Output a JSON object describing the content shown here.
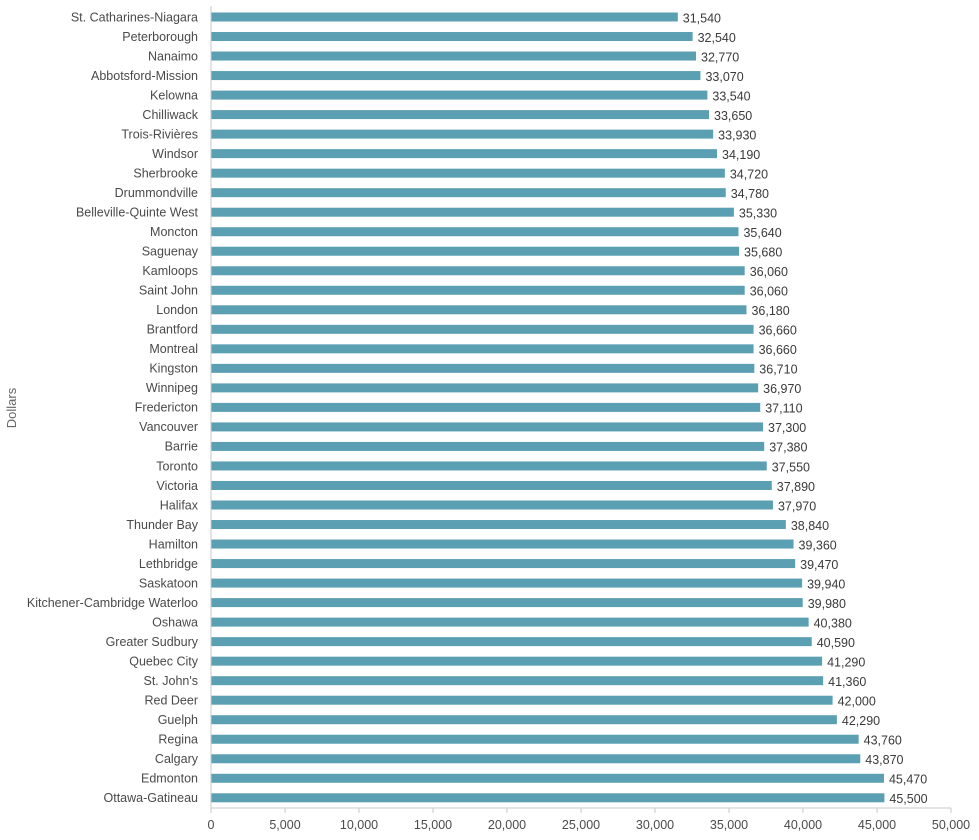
{
  "chart_data": {
    "type": "bar",
    "orientation": "horizontal",
    "title": "",
    "xlabel": "",
    "ylabel": "Dollars",
    "xlim": [
      0,
      50000
    ],
    "x_ticks": [
      0,
      5000,
      10000,
      15000,
      20000,
      25000,
      30000,
      35000,
      40000,
      45000,
      50000
    ],
    "x_tick_labels": [
      "0",
      "5,000",
      "10,000",
      "15,000",
      "20,000",
      "25,000",
      "30,000",
      "35,000",
      "40,000",
      "45,000",
      "50,000"
    ],
    "grid": false,
    "bar_color": "#5b9fb3",
    "categories": [
      "St. Catharines-Niagara",
      "Peterborough",
      "Nanaimo",
      "Abbotsford-Mission",
      "Kelowna",
      "Chilliwack",
      "Trois-Rivières",
      "Windsor",
      "Sherbrooke",
      "Drummondville",
      "Belleville-Quinte West",
      "Moncton",
      "Saguenay",
      "Kamloops",
      "Saint John",
      "London",
      "Brantford",
      "Montreal",
      "Kingston",
      "Winnipeg",
      "Fredericton",
      "Vancouver",
      "Barrie",
      "Toronto",
      "Victoria",
      "Halifax",
      "Thunder Bay",
      "Hamilton",
      "Lethbridge",
      "Saskatoon",
      "Kitchener-Cambridge Waterloo",
      "Oshawa",
      "Greater Sudbury",
      "Quebec City",
      "St. John's",
      "Red Deer",
      "Guelph",
      "Regina",
      "Calgary",
      "Edmonton",
      "Ottawa-Gatineau"
    ],
    "values": [
      31540,
      32540,
      32770,
      33070,
      33540,
      33650,
      33930,
      34190,
      34720,
      34780,
      35330,
      35640,
      35680,
      36060,
      36060,
      36180,
      36660,
      36660,
      36710,
      36970,
      37110,
      37300,
      37380,
      37550,
      37890,
      37970,
      38840,
      39360,
      39470,
      39940,
      39980,
      40380,
      40590,
      41290,
      41360,
      42000,
      42290,
      43760,
      43870,
      45470,
      45500
    ],
    "value_labels": [
      "31,540",
      "32,540",
      "32,770",
      "33,070",
      "33,540",
      "33,650",
      "33,930",
      "34,190",
      "34,720",
      "34,780",
      "35,330",
      "35,640",
      "35,680",
      "36,060",
      "36,060",
      "36,180",
      "36,660",
      "36,660",
      "36,710",
      "36,970",
      "37,110",
      "37,300",
      "37,380",
      "37,550",
      "37,890",
      "37,970",
      "38,840",
      "39,360",
      "39,470",
      "39,940",
      "39,980",
      "40,380",
      "40,590",
      "41,290",
      "41,360",
      "42,000",
      "42,290",
      "43,760",
      "43,870",
      "45,470",
      "45,500"
    ]
  }
}
